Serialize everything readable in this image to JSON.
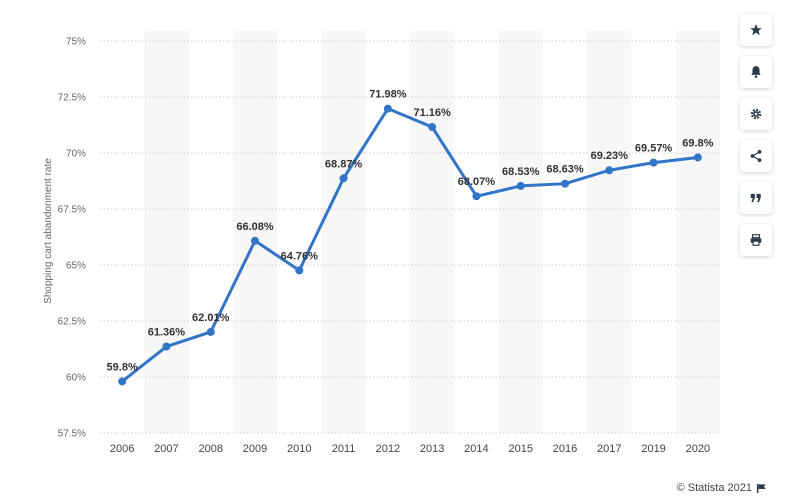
{
  "chart_data": {
    "type": "line",
    "categories": [
      "2006",
      "2007",
      "2008",
      "2009",
      "2010",
      "2011",
      "2012",
      "2013",
      "2014",
      "2015",
      "2016",
      "2017",
      "2019",
      "2020"
    ],
    "values": [
      59.8,
      61.36,
      62.01,
      66.08,
      64.76,
      68.87,
      71.98,
      71.16,
      68.07,
      68.53,
      68.63,
      69.23,
      69.57,
      69.8
    ],
    "data_labels": [
      "59.8%",
      "61.36%",
      "62.01%",
      "66.08%",
      "64.76%",
      "68.87%",
      "71.98%",
      "71.16%",
      "68.07%",
      "68.53%",
      "68.63%",
      "69.23%",
      "69.57%",
      "69.8%"
    ],
    "ylabel": "Shopping cart abandonment rate",
    "ylim": [
      57.5,
      75
    ],
    "yticks": [
      57.5,
      60,
      62.5,
      65,
      67.5,
      70,
      72.5,
      75
    ],
    "ytick_labels": [
      "57.5%",
      "60%",
      "62.5%",
      "65%",
      "67.5%",
      "70%",
      "72.5%",
      "75%"
    ],
    "grid": true,
    "colors": {
      "line": "#3274c8",
      "band": "#f7f7f7",
      "grid": "#cfcfcf"
    }
  },
  "credit": {
    "text": "© Statista 2021"
  },
  "toolbar": [
    {
      "name": "favorite-button",
      "icon": "star-icon"
    },
    {
      "name": "notification-button",
      "icon": "bell-icon"
    },
    {
      "name": "settings-button",
      "icon": "gear-icon"
    },
    {
      "name": "share-button",
      "icon": "share-icon"
    },
    {
      "name": "cite-button",
      "icon": "quote-icon"
    },
    {
      "name": "print-button",
      "icon": "print-icon"
    }
  ]
}
